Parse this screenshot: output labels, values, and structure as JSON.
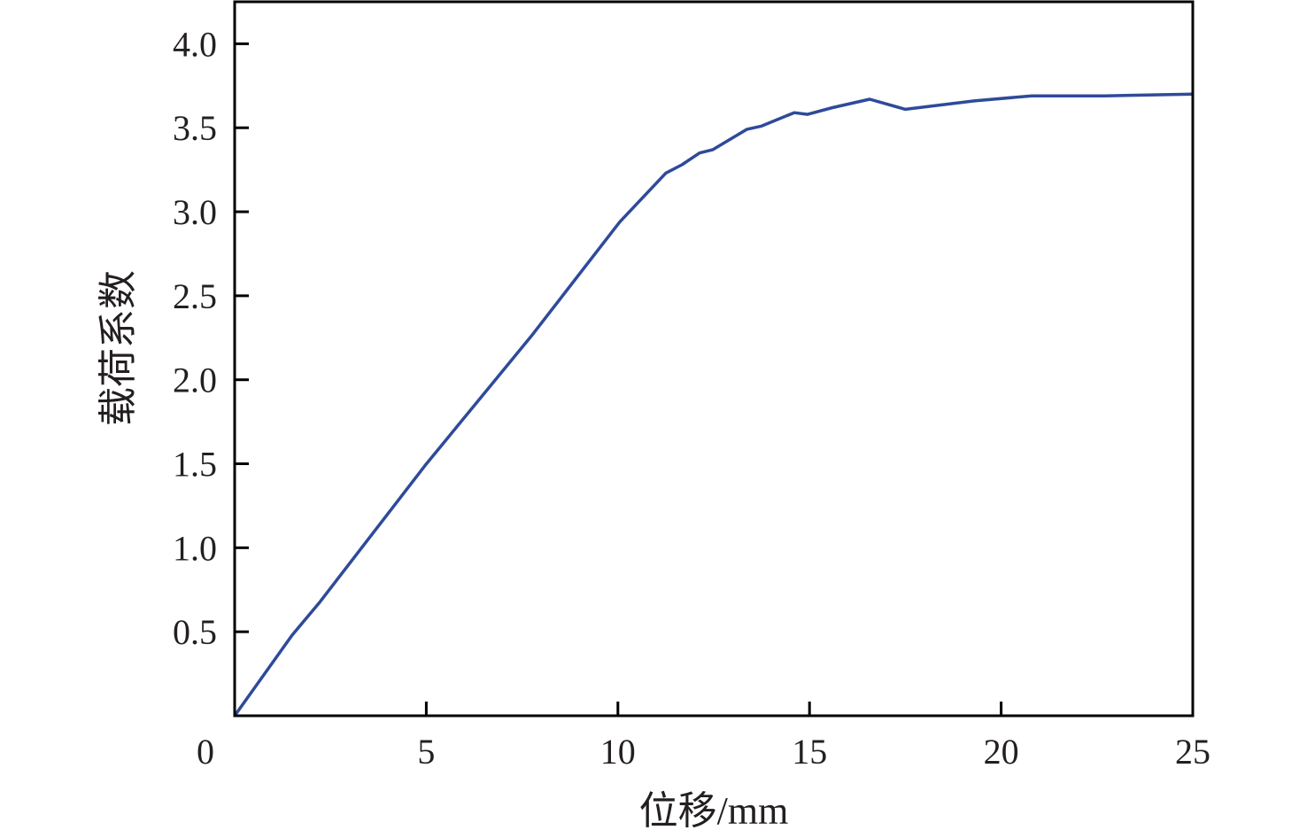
{
  "chart_data": {
    "type": "line",
    "title": "",
    "xlabel": "位移/mm",
    "ylabel": "载荷系数",
    "xlim": [
      0,
      25
    ],
    "ylim": [
      0,
      4.25
    ],
    "xticks": [
      0,
      5,
      10,
      15,
      20,
      25
    ],
    "xtick_labels": [
      "0",
      "5",
      "10",
      "15",
      "20",
      "25"
    ],
    "yticks": [
      0.5,
      1.0,
      1.5,
      2.0,
      2.5,
      3.0,
      3.5,
      4.0
    ],
    "ytick_labels": [
      "0.5",
      "1.0",
      "1.5",
      "2.0",
      "2.5",
      "3.0",
      "3.5",
      "4.0"
    ],
    "grid": false,
    "tick_direction": "in",
    "line_color": "#2e4a9a",
    "series": [
      {
        "x": [
          0,
          1.5,
          2.2,
          4.97,
          7.74,
          10.05,
          11.25,
          11.67,
          12.13,
          12.48,
          13.36,
          13.75,
          14.6,
          14.95,
          15.6,
          16.57,
          17.5,
          19.3,
          20.8,
          22.7,
          25
        ],
        "y": [
          0,
          0.48,
          0.67,
          1.49,
          2.26,
          2.94,
          3.23,
          3.28,
          3.35,
          3.37,
          3.49,
          3.51,
          3.59,
          3.58,
          3.62,
          3.67,
          3.61,
          3.66,
          3.69,
          3.69,
          3.7
        ]
      }
    ]
  }
}
